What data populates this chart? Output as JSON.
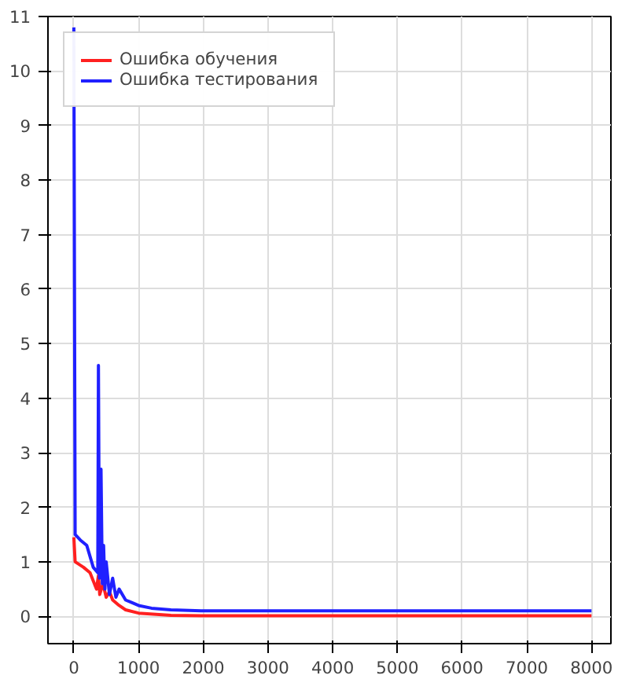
{
  "chart_data": {
    "type": "line",
    "xlim": [
      -400,
      8300
    ],
    "ylim": [
      -0.5,
      11
    ],
    "xticks": [
      0,
      1000,
      2000,
      3000,
      4000,
      5000,
      6000,
      7000,
      8000
    ],
    "yticks": [
      0,
      1,
      2,
      3,
      4,
      5,
      6,
      7,
      8,
      9,
      10,
      11
    ],
    "grid": true,
    "legend": "top left",
    "marker": "none",
    "line_style": "solid",
    "series": [
      {
        "name": "Ошибка обучения",
        "color": "#ff2020",
        "x": [
          0,
          20,
          150,
          250,
          350,
          380,
          400,
          450,
          500,
          550,
          600,
          700,
          800,
          1000,
          1500,
          2000,
          8000
        ],
        "values": [
          1.45,
          1.0,
          0.9,
          0.8,
          0.5,
          0.75,
          0.4,
          0.6,
          0.35,
          0.45,
          0.3,
          0.2,
          0.12,
          0.06,
          0.02,
          0.01,
          0.01
        ]
      },
      {
        "name": "Ошибка тестирования",
        "color": "#2020ff",
        "x": [
          0,
          20,
          100,
          200,
          300,
          370,
          380,
          395,
          420,
          440,
          460,
          480,
          500,
          550,
          600,
          650,
          700,
          800,
          900,
          1000,
          1200,
          1500,
          2000,
          3000,
          5000,
          8000
        ],
        "values": [
          10.8,
          1.5,
          1.4,
          1.3,
          0.9,
          0.8,
          4.6,
          0.7,
          2.7,
          0.6,
          1.3,
          0.5,
          1.0,
          0.4,
          0.7,
          0.35,
          0.5,
          0.3,
          0.25,
          0.2,
          0.15,
          0.12,
          0.1,
          0.1,
          0.1,
          0.1
        ]
      }
    ]
  }
}
